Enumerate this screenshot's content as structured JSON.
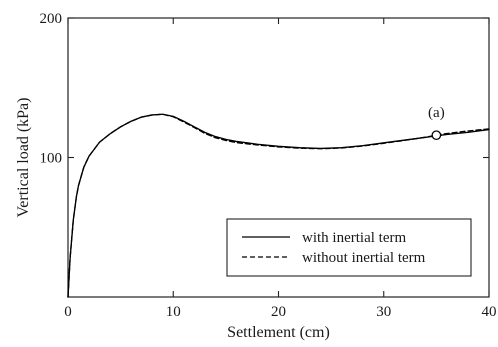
{
  "chart_data": {
    "type": "line",
    "xlabel": "Settlement (cm)",
    "ylabel": "Vertical load (kPa)",
    "xlim": [
      0,
      40
    ],
    "ylim": [
      0,
      200
    ],
    "x_ticks": [
      0,
      10,
      20,
      30,
      40
    ],
    "y_tick_labels": [
      {
        "value": 100,
        "label": "100"
      },
      {
        "value": 200,
        "label": "200"
      }
    ],
    "grid": false,
    "legend_position": "bottom-right",
    "series": [
      {
        "name": "with inertial term",
        "line_style": "solid",
        "color": "#000000",
        "points": [
          [
            0.0,
            0
          ],
          [
            0.2,
            28
          ],
          [
            0.5,
            55
          ],
          [
            0.8,
            72
          ],
          [
            1.0,
            80
          ],
          [
            1.5,
            93
          ],
          [
            2.0,
            101
          ],
          [
            3.0,
            111
          ],
          [
            4.0,
            117
          ],
          [
            5.0,
            122
          ],
          [
            6.0,
            126
          ],
          [
            7.0,
            129
          ],
          [
            8.0,
            130.5
          ],
          [
            9.0,
            131
          ],
          [
            10.0,
            129.5
          ],
          [
            11.0,
            126
          ],
          [
            12.0,
            122
          ],
          [
            13.0,
            118
          ],
          [
            14.0,
            115
          ],
          [
            15.0,
            113
          ],
          [
            16.0,
            111.5
          ],
          [
            17.0,
            110.5
          ],
          [
            18.0,
            109.5
          ],
          [
            20.0,
            108
          ],
          [
            22.0,
            107
          ],
          [
            24.0,
            106.5
          ],
          [
            26.0,
            107
          ],
          [
            28.0,
            108.5
          ],
          [
            30.0,
            110.5
          ],
          [
            32.0,
            112.5
          ],
          [
            34.0,
            114.5
          ],
          [
            35.0,
            115.5
          ],
          [
            36.0,
            116.5
          ],
          [
            38.0,
            118
          ],
          [
            40.0,
            120
          ]
        ]
      },
      {
        "name": "without inertial term",
        "line_style": "dashed",
        "color": "#000000",
        "points": [
          [
            0.0,
            0
          ],
          [
            0.2,
            28
          ],
          [
            0.5,
            55
          ],
          [
            0.8,
            72
          ],
          [
            1.0,
            80
          ],
          [
            1.5,
            93
          ],
          [
            2.0,
            101
          ],
          [
            3.0,
            111
          ],
          [
            4.0,
            117
          ],
          [
            5.0,
            122
          ],
          [
            6.0,
            126
          ],
          [
            7.0,
            129
          ],
          [
            8.0,
            130.5
          ],
          [
            9.0,
            131
          ],
          [
            10.0,
            129.2
          ],
          [
            11.0,
            125.5
          ],
          [
            12.0,
            121.5
          ],
          [
            13.0,
            117.3
          ],
          [
            14.0,
            114.2
          ],
          [
            15.0,
            112.2
          ],
          [
            16.0,
            110.7
          ],
          [
            17.0,
            109.8
          ],
          [
            18.0,
            109
          ],
          [
            20.0,
            107.6
          ],
          [
            22.0,
            106.7
          ],
          [
            24.0,
            106.3
          ],
          [
            26.0,
            106.8
          ],
          [
            28.0,
            108.2
          ],
          [
            30.0,
            110.2
          ],
          [
            32.0,
            112.3
          ],
          [
            34.0,
            114.6
          ],
          [
            35.0,
            116.0
          ],
          [
            36.0,
            117.2
          ],
          [
            38.0,
            119
          ],
          [
            40.0,
            120.5
          ]
        ]
      }
    ],
    "annotation": {
      "label": "(a)",
      "x": 35.0,
      "y": 116.0
    }
  }
}
